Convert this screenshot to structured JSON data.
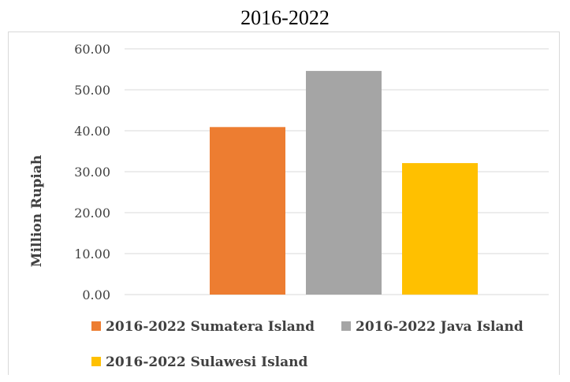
{
  "chart_data": {
    "type": "bar",
    "title": "2016-2022",
    "xlabel": "",
    "ylabel": "Million Rupiah",
    "ylim": [
      0,
      60
    ],
    "yticks": [
      "0.00",
      "10.00",
      "20.00",
      "30.00",
      "40.00",
      "50.00",
      "60.00"
    ],
    "grid": true,
    "legend_position": "bottom",
    "series": [
      {
        "name": "2016-2022 Sumatera Island",
        "value": 40.9,
        "color": "#ED7D31"
      },
      {
        "name": "2016-2022 Java Island",
        "value": 54.6,
        "color": "#A5A5A5"
      },
      {
        "name": "2016-2022 Sulawesi Island",
        "value": 32.1,
        "color": "#FFC000"
      }
    ]
  }
}
